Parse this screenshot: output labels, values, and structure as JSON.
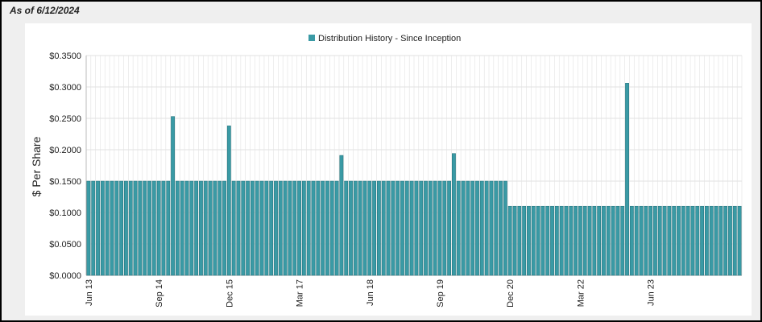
{
  "as_of": "As of 6/12/2024",
  "chart_data": {
    "type": "bar",
    "legend": {
      "entries": [
        "Distribution History - Since Inception"
      ],
      "placement": "top-center"
    },
    "ylabel": "$ Per Share",
    "xlabel": "",
    "ylim": [
      0,
      0.35
    ],
    "y_ticks": [
      "$0.0000",
      "$0.0500",
      "$0.1000",
      "$0.1500",
      "$0.2000",
      "$0.2500",
      "$0.3000",
      "$0.3500"
    ],
    "y_tick_values": [
      0,
      0.05,
      0.1,
      0.15,
      0.2,
      0.25,
      0.3,
      0.35
    ],
    "x_tick_labels": [
      "Jun 13",
      "Sep 14",
      "Dec 15",
      "Mar 17",
      "Jun 18",
      "Sep 19",
      "Dec 20",
      "Mar 22",
      "Jun 23"
    ],
    "x_tick_indices": [
      0,
      15,
      30,
      45,
      60,
      75,
      90,
      105,
      120
    ],
    "grid": true,
    "colors": {
      "bar": "#3a9aa5",
      "bar_edge": "#1f6f78",
      "grid": "#e2e2e2"
    },
    "series": [
      {
        "values": [
          0.15,
          0.15,
          0.15,
          0.15,
          0.15,
          0.15,
          0.15,
          0.15,
          0.15,
          0.15,
          0.15,
          0.15,
          0.15,
          0.15,
          0.15,
          0.15,
          0.15,
          0.15,
          0.253,
          0.15,
          0.15,
          0.15,
          0.15,
          0.15,
          0.15,
          0.15,
          0.15,
          0.15,
          0.15,
          0.15,
          0.238,
          0.15,
          0.15,
          0.15,
          0.15,
          0.15,
          0.15,
          0.15,
          0.15,
          0.15,
          0.15,
          0.15,
          0.15,
          0.15,
          0.15,
          0.15,
          0.15,
          0.15,
          0.15,
          0.15,
          0.15,
          0.15,
          0.15,
          0.15,
          0.191,
          0.15,
          0.15,
          0.15,
          0.15,
          0.15,
          0.15,
          0.15,
          0.15,
          0.15,
          0.15,
          0.15,
          0.15,
          0.15,
          0.15,
          0.15,
          0.15,
          0.15,
          0.15,
          0.15,
          0.15,
          0.15,
          0.15,
          0.15,
          0.194,
          0.15,
          0.15,
          0.15,
          0.15,
          0.15,
          0.15,
          0.15,
          0.15,
          0.15,
          0.15,
          0.15,
          0.11,
          0.11,
          0.11,
          0.11,
          0.11,
          0.11,
          0.11,
          0.11,
          0.11,
          0.11,
          0.11,
          0.11,
          0.11,
          0.11,
          0.11,
          0.11,
          0.11,
          0.11,
          0.11,
          0.11,
          0.11,
          0.11,
          0.11,
          0.11,
          0.11,
          0.306,
          0.11,
          0.11,
          0.11,
          0.11,
          0.11,
          0.11,
          0.11,
          0.11,
          0.11,
          0.11,
          0.11,
          0.11,
          0.11,
          0.11,
          0.11,
          0.11,
          0.11,
          0.11,
          0.11,
          0.11,
          0.11,
          0.11,
          0.11,
          0.11
        ]
      }
    ]
  }
}
